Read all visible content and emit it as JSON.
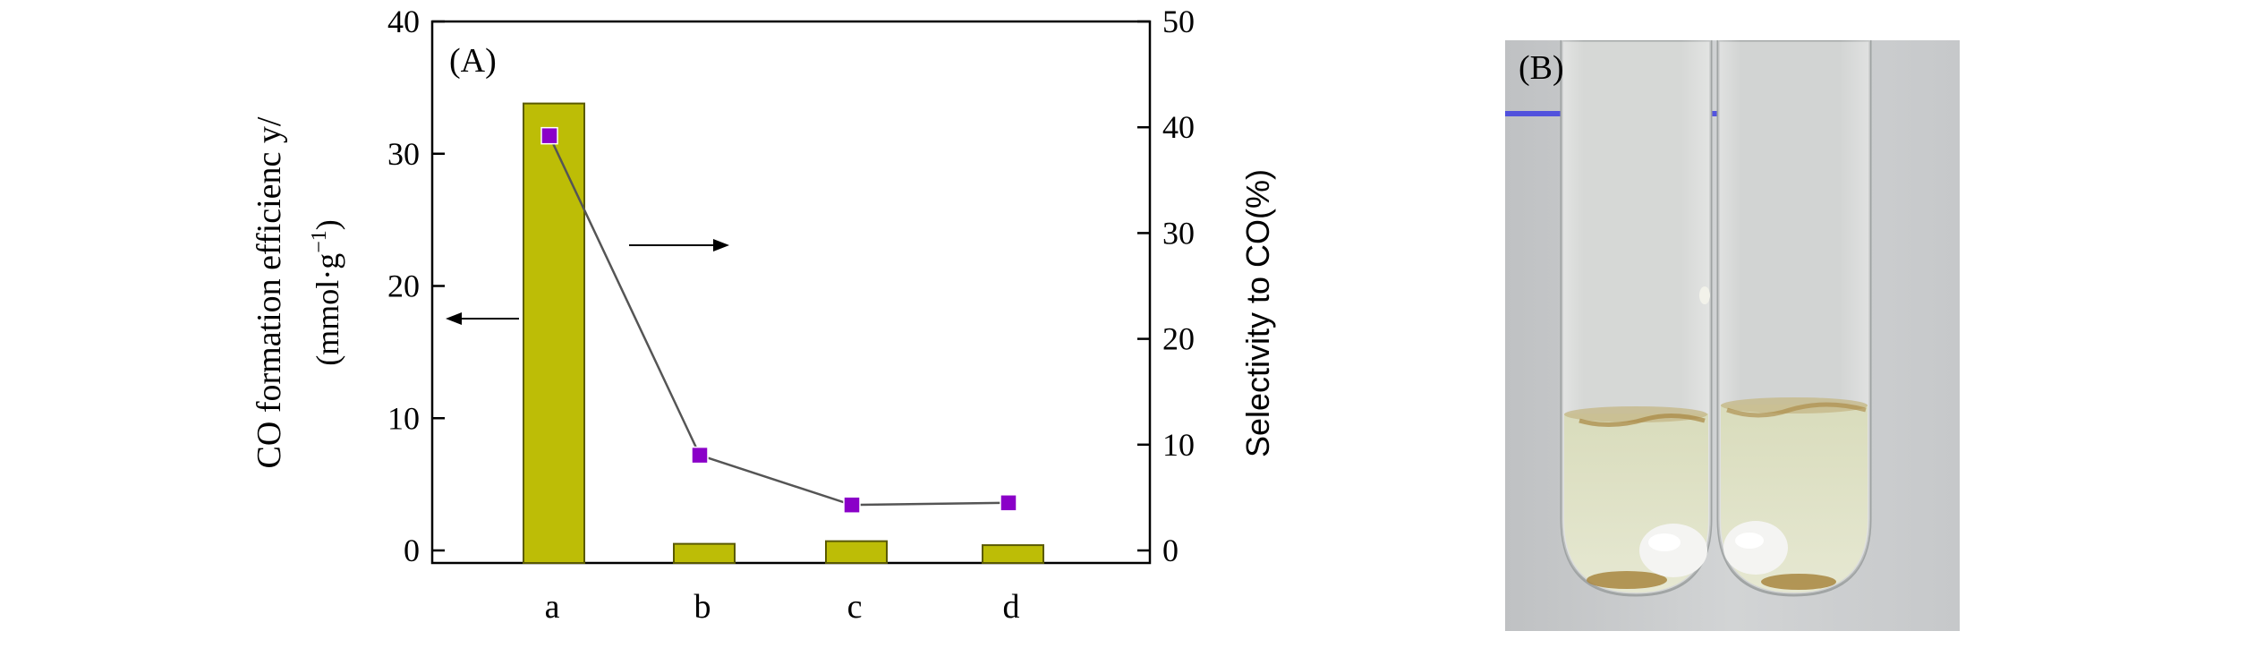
{
  "panel_a_label": "(A)",
  "panel_b_label": "(B)",
  "chart_data": {
    "type": "bar",
    "categories": [
      "a",
      "b",
      "c",
      "d"
    ],
    "values": [
      33.8,
      0.5,
      0.7,
      0.4
    ],
    "ylabel_line1": "CO formation efficienc y/",
    "ylabel_line2": "(mmol·g",
    "ylabel_sup": "−1",
    "ylabel_close": ")",
    "ylim": [
      0,
      40
    ],
    "yticks": [
      0,
      10,
      20,
      30,
      40
    ],
    "y2label": "Selectivity to CO(%)",
    "y2lim": [
      0,
      50
    ],
    "y2ticks": [
      0,
      10,
      20,
      30,
      40,
      50
    ],
    "series": [
      {
        "axis": "right",
        "type": "line+marker",
        "values": [
          39.2,
          9.0,
          4.3,
          4.5
        ]
      }
    ],
    "colors": {
      "bar": "#bdbd06",
      "bar_edge": "#5a5a00",
      "marker": "#8a00c8",
      "line": "#555555"
    },
    "grid": false,
    "legend": "none"
  },
  "photo": {
    "description_icon": "test-tubes-photo",
    "colors": {
      "background": "#c9cbcc",
      "liquid": "#dfe3c6",
      "sediment": "#a88640",
      "stirbar": "#f4f4f2",
      "blue_line": "#3d3de0"
    }
  }
}
